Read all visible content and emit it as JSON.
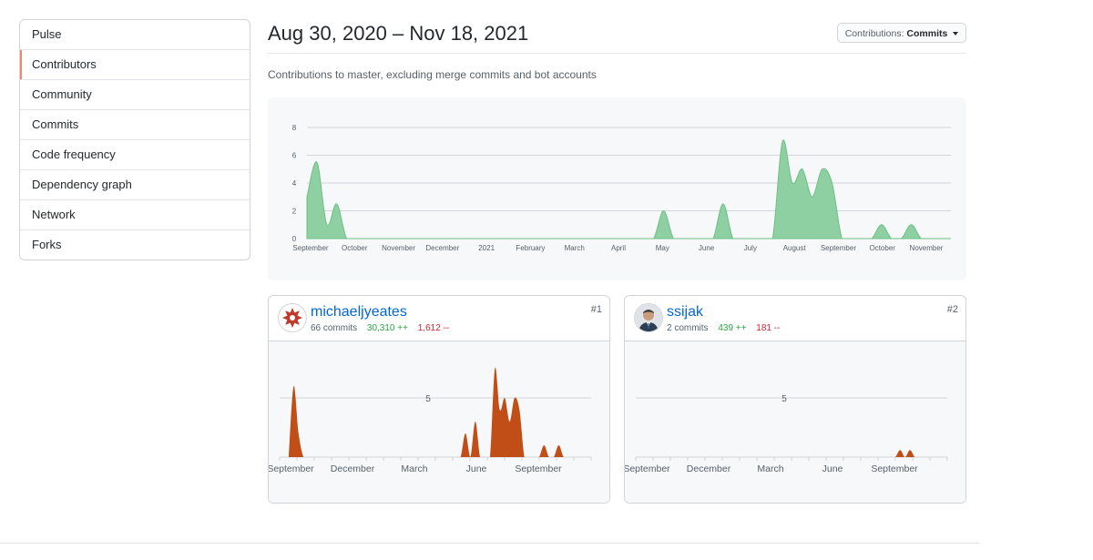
{
  "sidebar": {
    "items": [
      {
        "label": "Pulse"
      },
      {
        "label": "Contributors",
        "selected": true
      },
      {
        "label": "Community"
      },
      {
        "label": "Commits"
      },
      {
        "label": "Code frequency"
      },
      {
        "label": "Dependency graph"
      },
      {
        "label": "Network"
      },
      {
        "label": "Forks"
      }
    ]
  },
  "header": {
    "title": "Aug 30, 2020 – Nov 18, 2021",
    "contributions_prefix": "Contributions:",
    "contributions_value": "Commits",
    "subtitle": "Contributions to master, excluding merge commits and bot accounts"
  },
  "colors": {
    "main_fill": "#8fd0a2",
    "main_stroke": "#6ebf87",
    "contributor_fill": "#c24e17",
    "accent_selected": "#f9826c",
    "link": "#0366d6",
    "additions": "#28a745",
    "deletions": "#cb2431"
  },
  "chart_data": [
    {
      "type": "area",
      "title": "",
      "ylim": [
        0,
        8
      ],
      "yticks": [
        "0",
        "2",
        "4",
        "6",
        "8"
      ],
      "month_labels": [
        "September",
        "October",
        "November",
        "December",
        "2021",
        "February",
        "March",
        "April",
        "May",
        "June",
        "July",
        "August",
        "September",
        "October",
        "November"
      ],
      "x_weeks": [
        0,
        1,
        2,
        3,
        4,
        5,
        6,
        7,
        8,
        9,
        10,
        11,
        12,
        13,
        14,
        15,
        16,
        17,
        18,
        19,
        20,
        21,
        22,
        23,
        24,
        25,
        26,
        27,
        28,
        29,
        30,
        31,
        32,
        33,
        34,
        35,
        36,
        37,
        38,
        39,
        40,
        41,
        42,
        43,
        44,
        45,
        46,
        47,
        48,
        49,
        50,
        51,
        52,
        53,
        54,
        55,
        56,
        57,
        58,
        59,
        60,
        61,
        62,
        63,
        64,
        65
      ],
      "values": [
        3,
        5.5,
        1,
        2.5,
        0,
        0,
        0,
        0,
        0,
        0,
        0,
        0,
        0,
        0,
        0,
        0,
        0,
        0,
        0,
        0,
        0,
        0,
        0,
        0,
        0,
        0,
        0,
        0,
        0,
        0,
        0,
        0,
        0,
        0,
        0,
        0,
        2,
        0,
        0,
        0,
        0,
        0,
        2.5,
        0,
        0,
        0,
        0,
        0,
        7,
        4,
        5,
        3,
        5,
        4,
        0,
        0,
        0,
        0,
        1,
        0,
        0,
        1,
        0,
        0,
        0,
        0
      ],
      "grid": true
    },
    {
      "type": "area",
      "series_owner": "michaeljyeates",
      "ytick": "5",
      "month_labels": [
        "September",
        "December",
        "March",
        "June",
        "September"
      ],
      "values": [
        0,
        6,
        2,
        0,
        0,
        0,
        0,
        0,
        0,
        0,
        0,
        0,
        0,
        0,
        0,
        0,
        0,
        0,
        0,
        0,
        0,
        0,
        0,
        0,
        0,
        0,
        0,
        0,
        0,
        0,
        0,
        0,
        0,
        0,
        0,
        0,
        2,
        0,
        3,
        0,
        0,
        0,
        7.5,
        4,
        5,
        3,
        5,
        4,
        0,
        0,
        0,
        0,
        1,
        0,
        0,
        1,
        0,
        0,
        0,
        0
      ]
    },
    {
      "type": "area",
      "series_owner": "ssijak",
      "ytick": "5",
      "month_labels": [
        "September",
        "December",
        "March",
        "June",
        "September"
      ],
      "values": [
        0,
        0,
        0,
        0,
        0,
        0,
        0,
        0,
        0,
        0,
        0,
        0,
        0,
        0,
        0,
        0,
        0,
        0,
        0,
        0,
        0,
        0,
        0,
        0,
        0,
        0,
        0,
        0,
        0,
        0,
        0,
        0,
        0,
        0,
        0,
        0,
        0,
        0,
        0,
        0,
        0,
        0,
        0,
        0,
        0,
        0,
        0,
        0,
        0,
        0,
        0,
        0,
        0.6,
        0,
        0.6,
        0,
        0,
        0,
        0,
        0
      ]
    }
  ],
  "contributors": [
    {
      "rank": "#1",
      "name": "michaeljyeates",
      "commits": "66 commits",
      "additions": "30,310 ++",
      "deletions": "1,612 --",
      "avatar_icon": "red-snowflake-identicon"
    },
    {
      "rank": "#2",
      "name": "ssijak",
      "commits": "2 commits",
      "additions": "439 ++",
      "deletions": "181 --",
      "avatar_icon": "user-photo-avatar"
    }
  ]
}
